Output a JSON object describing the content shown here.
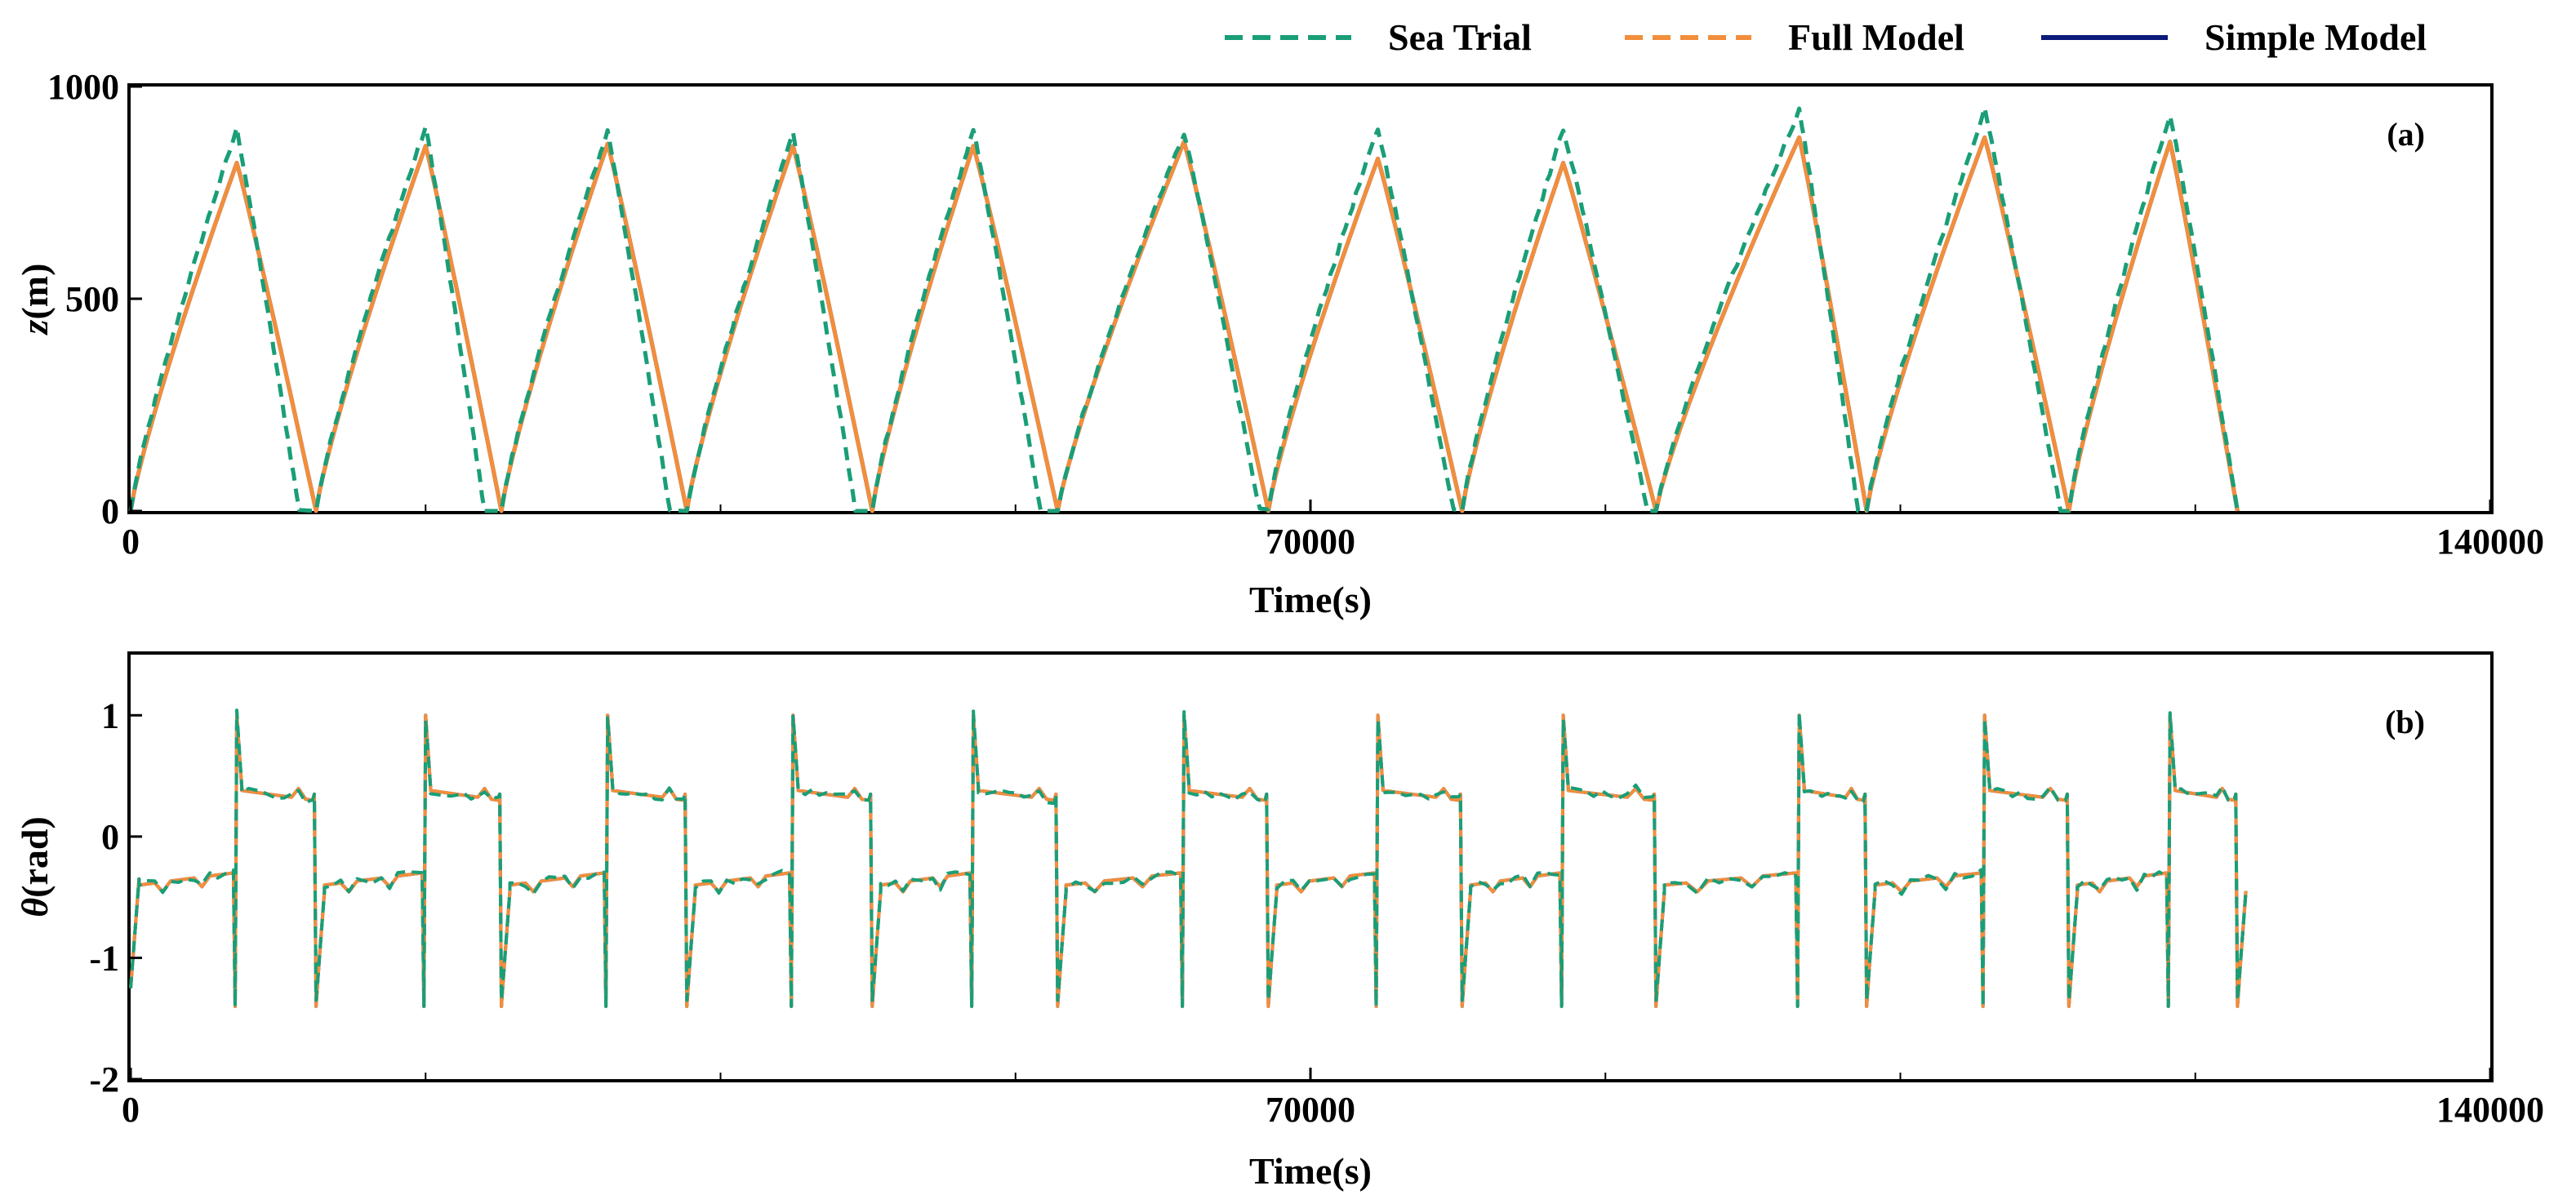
{
  "legend": [
    {
      "name": "Sea Trial",
      "color": "#1a9e77",
      "dash": "dashed"
    },
    {
      "name": "Full Model",
      "color": "#f28e3c",
      "dash": "dashed"
    },
    {
      "name": "Simple Model",
      "color": "#0c1a7a",
      "dash": "solid"
    }
  ],
  "chart_data": [
    {
      "type": "line",
      "panel_label": "(a)",
      "xlabel": "Time(s)",
      "ylabel": "z(m)",
      "ylabel_italic_part": "z",
      "ylabel_rest": "(m)",
      "xlim": [
        0,
        140000
      ],
      "ylim": [
        0,
        1000
      ],
      "xticks": [
        0,
        70000,
        140000
      ],
      "yticks": [
        0,
        500,
        1000
      ],
      "grid": false,
      "dive_cycles": [
        {
          "start": 0,
          "peak_t": 6300,
          "peak": 820,
          "end": 11000,
          "sea_peak": 900,
          "sea_end": 10000
        },
        {
          "start": 11000,
          "peak_t": 17500,
          "peak": 860,
          "end": 22000,
          "sea_peak": 905,
          "sea_end": 21000
        },
        {
          "start": 22000,
          "peak_t": 28300,
          "peak": 865,
          "end": 33000,
          "sea_peak": 895,
          "sea_end": 32000
        },
        {
          "start": 33000,
          "peak_t": 39300,
          "peak": 860,
          "end": 44000,
          "sea_peak": 890,
          "sea_end": 43000
        },
        {
          "start": 44000,
          "peak_t": 50000,
          "peak": 860,
          "end": 55000,
          "sea_peak": 895,
          "sea_end": 54000
        },
        {
          "start": 55000,
          "peak_t": 62500,
          "peak": 870,
          "end": 67500,
          "sea_peak": 890,
          "sea_end": 67000
        },
        {
          "start": 67500,
          "peak_t": 74000,
          "peak": 830,
          "end": 79000,
          "sea_peak": 900,
          "sea_end": 78500
        },
        {
          "start": 79000,
          "peak_t": 85000,
          "peak": 820,
          "end": 90500,
          "sea_peak": 900,
          "sea_end": 90000
        },
        {
          "start": 90500,
          "peak_t": 99000,
          "peak": 880,
          "end": 103000,
          "sea_peak": 945,
          "sea_end": 102500
        },
        {
          "start": 103000,
          "peak_t": 110000,
          "peak": 880,
          "end": 115000,
          "sea_peak": 945,
          "sea_end": 114500
        },
        {
          "start": 115000,
          "peak_t": 121000,
          "peak": 870,
          "end": 125000,
          "sea_peak": 935,
          "sea_end": 125000
        }
      ]
    },
    {
      "type": "line",
      "panel_label": "(b)",
      "xlabel": "Time(s)",
      "ylabel": "θ(rad)",
      "ylabel_italic_part": "θ",
      "ylabel_rest": "(rad)",
      "xlim": [
        0,
        140000
      ],
      "ylim": [
        -2,
        1.5
      ],
      "xticks": [
        0,
        70000,
        140000
      ],
      "yticks": [
        -2,
        -1,
        0,
        1
      ],
      "grid": false,
      "transitions": [
        {
          "up": 6300,
          "down": 11000
        },
        {
          "up": 17500,
          "down": 22000
        },
        {
          "up": 28300,
          "down": 33000
        },
        {
          "up": 39300,
          "down": 44000
        },
        {
          "up": 50000,
          "down": 55000
        },
        {
          "up": 62500,
          "down": 67500
        },
        {
          "up": 74000,
          "down": 79000
        },
        {
          "up": 85000,
          "down": 90500
        },
        {
          "up": 99000,
          "down": 103000
        },
        {
          "up": 110000,
          "down": 115000
        },
        {
          "up": 121000,
          "down": 125000
        }
      ],
      "ascent_level": 0.35,
      "descent_level": -0.35,
      "spike_high": 1.0,
      "spike_low": -1.4
    }
  ]
}
